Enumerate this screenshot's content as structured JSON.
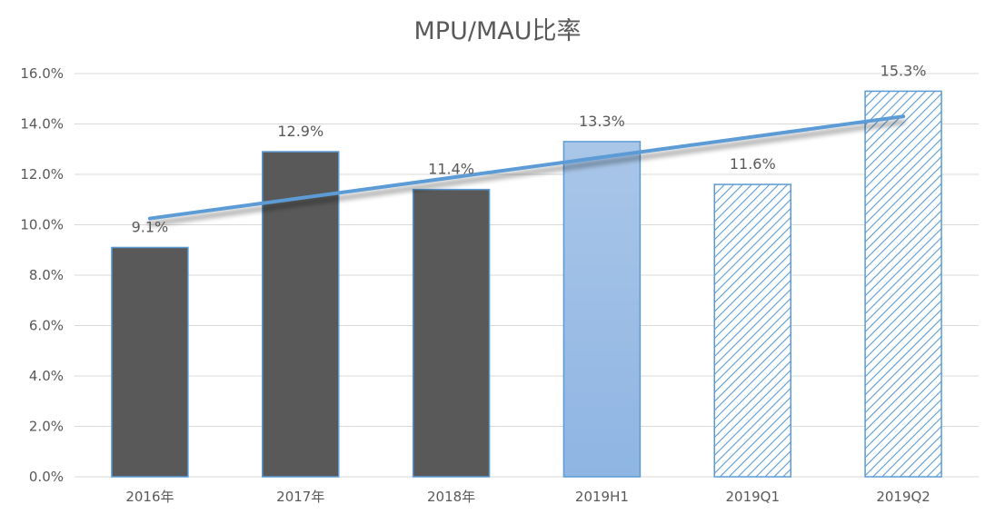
{
  "chart_data": {
    "type": "bar",
    "title": "MPU/MAU比率",
    "categories": [
      "2016年",
      "2017年",
      "2018年",
      "2019H1",
      "2019Q1",
      "2019Q2"
    ],
    "values": [
      9.1,
      12.9,
      11.4,
      13.3,
      11.6,
      15.3
    ],
    "value_labels": [
      "9.1%",
      "12.9%",
      "11.4%",
      "13.3%",
      "11.6%",
      "15.3%"
    ],
    "bar_styles": [
      "solid-dark",
      "solid-dark",
      "solid-dark",
      "gradient-blue",
      "hatched-blue",
      "hatched-blue"
    ],
    "ylim": [
      0,
      16
    ],
    "yticks": [
      0,
      2,
      4,
      6,
      8,
      10,
      12,
      14,
      16
    ],
    "ytick_labels": [
      "0.0%",
      "2.0%",
      "4.0%",
      "6.0%",
      "8.0%",
      "10.0%",
      "12.0%",
      "14.0%",
      "16.0%"
    ],
    "grid": true,
    "legend": "none",
    "trendline": {
      "type": "linear",
      "from": 10.25,
      "to": 14.3
    },
    "colors": {
      "dark_bar": "#595959",
      "bar_border": "#5b9bd5",
      "gradient_top": "#a9c6e8",
      "gradient_bottom": "#8fb5e3",
      "hatch": "#5b9bd5",
      "trendline": "#5b9bd5",
      "grid": "#d9d9d9",
      "text": "#595959"
    }
  }
}
